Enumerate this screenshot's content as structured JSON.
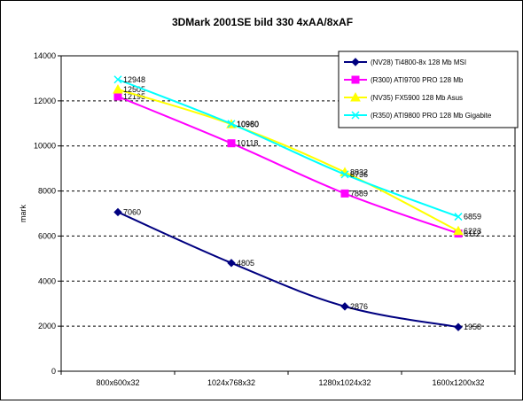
{
  "chart_data": {
    "type": "line",
    "title": "3DMark 2001SE bild 330 4xAA/8xAF",
    "xlabel": "",
    "ylabel": "mark",
    "categories": [
      "800x600x32",
      "1024x768x32",
      "1280x1024x32",
      "1600x1200x32"
    ],
    "ylim": [
      0,
      14000
    ],
    "yticks": [
      0,
      2000,
      4000,
      6000,
      8000,
      10000,
      12000,
      14000
    ],
    "grid": true,
    "legend_position": "top-right",
    "series": [
      {
        "name": "(NV28) Ti4800-8x 128 Mb MSI",
        "values": [
          7060,
          4805,
          2876,
          1958
        ],
        "color": "#000080",
        "marker": "diamond"
      },
      {
        "name": "(R300) ATI9700 PRO 128 Mb",
        "values": [
          12195,
          10118,
          7889,
          6112
        ],
        "color": "#ff00ff",
        "marker": "square"
      },
      {
        "name": "(NV35) FX5900 128 Mb Asus",
        "values": [
          12505,
          10960,
          8832,
          6223
        ],
        "color": "#ffff00",
        "marker": "triangle"
      },
      {
        "name": "(R350) ATI9800 PRO 128 Mb Gigabite",
        "values": [
          12948,
          10980,
          8736,
          6859
        ],
        "color": "#00ffff",
        "marker": "x"
      }
    ]
  }
}
